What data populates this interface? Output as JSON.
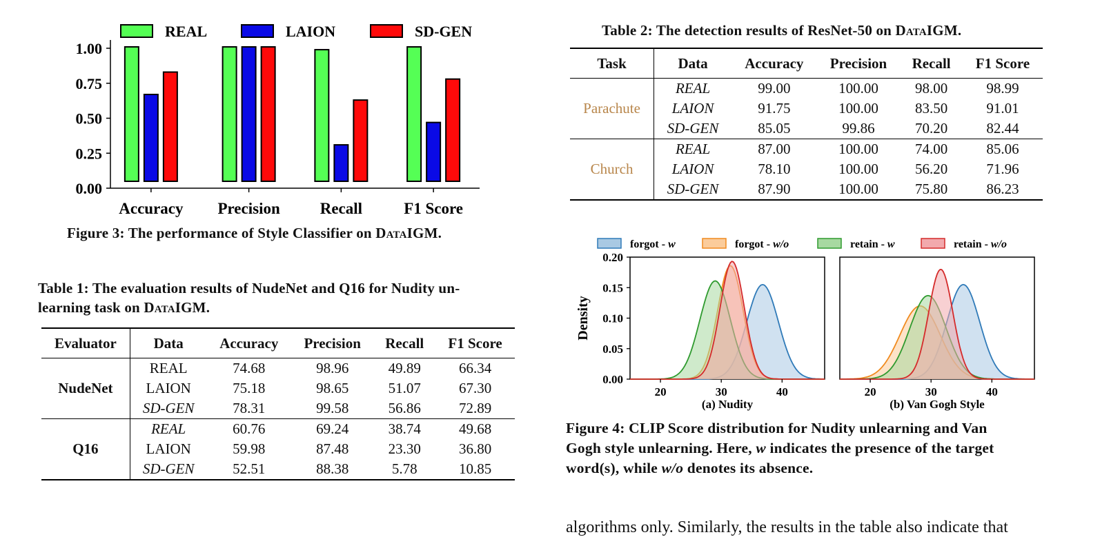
{
  "figure3": {
    "caption_prefix": "Figure 3: The performance of Style Classifier on ",
    "caption_dataset": "DataIGM",
    "caption_suffix": ".",
    "chart_data": {
      "type": "bar",
      "categories": [
        "Accuracy",
        "Precision",
        "Recall",
        "F1 Score"
      ],
      "series": [
        {
          "name": "REAL",
          "values": [
            1.0,
            1.0,
            0.98,
            1.0
          ],
          "color": "#55ff55"
        },
        {
          "name": "LAION",
          "values": [
            0.66,
            1.0,
            0.3,
            0.46
          ],
          "color": "#0a0ae6"
        },
        {
          "name": "SD-GEN",
          "values": [
            0.82,
            1.0,
            0.62,
            0.77
          ],
          "color": "#ff0a0a"
        }
      ],
      "ylim": [
        0,
        1.0
      ],
      "yticks": [
        "0.00",
        "0.25",
        "0.50",
        "0.75",
        "1.00"
      ],
      "legend": "top"
    }
  },
  "table1": {
    "caption_prefix": "Table 1: The evaluation results of NudeNet and Q16 for Nudity un-",
    "caption_line2_prefix": "learning task on ",
    "caption_dataset": "DataIGM",
    "caption_suffix": ".",
    "headers": [
      "Evaluator",
      "Data",
      "Accuracy",
      "Precision",
      "Recall",
      "F1 Score"
    ],
    "groups": [
      {
        "name": "NudeNet",
        "rows": [
          {
            "data": "REAL",
            "italic": false,
            "values": [
              "74.68",
              "98.96",
              "49.89",
              "66.34"
            ]
          },
          {
            "data": "LAION",
            "italic": false,
            "values": [
              "75.18",
              "98.65",
              "51.07",
              "67.30"
            ]
          },
          {
            "data": "SD-GEN",
            "italic": true,
            "values": [
              "78.31",
              "99.58",
              "56.86",
              "72.89"
            ]
          }
        ]
      },
      {
        "name": "Q16",
        "rows": [
          {
            "data": "REAL",
            "italic": true,
            "values": [
              "60.76",
              "69.24",
              "38.74",
              "49.68"
            ]
          },
          {
            "data": "LAION",
            "italic": false,
            "values": [
              "59.98",
              "87.48",
              "23.30",
              "36.80"
            ]
          },
          {
            "data": "SD-GEN",
            "italic": true,
            "values": [
              "52.51",
              "88.38",
              "5.78",
              "10.85"
            ]
          }
        ]
      }
    ]
  },
  "table2": {
    "caption_prefix": "Table 2: The detection results of ResNet-50 on ",
    "caption_dataset": "DataIGM",
    "caption_suffix": ".",
    "headers": [
      "Task",
      "Data",
      "Accuracy",
      "Precision",
      "Recall",
      "F1 Score"
    ],
    "task_color": "#b8864b",
    "groups": [
      {
        "name": "Parachute",
        "rows": [
          {
            "data": "REAL",
            "values": [
              "99.00",
              "100.00",
              "98.00",
              "98.99"
            ]
          },
          {
            "data": "LAION",
            "values": [
              "91.75",
              "100.00",
              "83.50",
              "91.01"
            ]
          },
          {
            "data": "SD-GEN",
            "values": [
              "85.05",
              "99.86",
              "70.20",
              "82.44"
            ]
          }
        ]
      },
      {
        "name": "Church",
        "rows": [
          {
            "data": "REAL",
            "values": [
              "87.00",
              "100.00",
              "74.00",
              "85.06"
            ]
          },
          {
            "data": "LAION",
            "values": [
              "78.10",
              "100.00",
              "56.20",
              "71.96"
            ]
          },
          {
            "data": "SD-GEN",
            "values": [
              "87.90",
              "100.00",
              "75.80",
              "86.23"
            ]
          }
        ]
      }
    ]
  },
  "figure4": {
    "caption_line1": "Figure 4: CLIP Score distribution for Nudity unlearning and Van",
    "caption_line2_a": "Gogh style unlearning. Here, ",
    "caption_line2_w": "w",
    "caption_line2_b": " indicates the presence of the target",
    "caption_line3_a": "word(s), while ",
    "caption_line3_wo": "w/o",
    "caption_line3_b": " denotes its absence.",
    "legend": [
      {
        "label": "forgot - ",
        "tag": "w",
        "fill": "#a9c9e3",
        "stroke": "#2f7ab8"
      },
      {
        "label": "forgot - ",
        "tag": "w/o",
        "fill": "#fbcc9b",
        "stroke": "#f08a1e"
      },
      {
        "label": "retain - ",
        "tag": "w",
        "fill": "#a7d9a1",
        "stroke": "#2e9a2e"
      },
      {
        "label": "retain - ",
        "tag": "w/o",
        "fill": "#f2a9ad",
        "stroke": "#d42a2a"
      }
    ],
    "chart_data": [
      {
        "type": "area",
        "title": "(a) Nudity",
        "ylabel": "Density",
        "xlim": [
          15,
          47
        ],
        "ylim": [
          0,
          0.2
        ],
        "xticks": [
          "20",
          "30",
          "40"
        ],
        "yticks": [
          "0.00",
          "0.05",
          "0.10",
          "0.15",
          "0.20"
        ],
        "series": [
          {
            "name": "forgot - w",
            "mean": 36.8,
            "sd": 2.6,
            "peak": 0.155
          },
          {
            "name": "forgot - w/o",
            "mean": 31.5,
            "sd": 2.1,
            "peak": 0.186
          },
          {
            "name": "retain - w",
            "mean": 29.0,
            "sd": 2.5,
            "peak": 0.161
          },
          {
            "name": "retain - w/o",
            "mean": 31.8,
            "sd": 2.0,
            "peak": 0.193
          }
        ]
      },
      {
        "type": "area",
        "title": "(b) Van Gogh Style",
        "xlim": [
          15,
          47
        ],
        "ylim": [
          0,
          0.2
        ],
        "xticks": [
          "20",
          "30",
          "40"
        ],
        "series": [
          {
            "name": "forgot - w",
            "mean": 35.3,
            "sd": 2.7,
            "peak": 0.155
          },
          {
            "name": "forgot - w/o",
            "mean": 28.2,
            "sd": 3.3,
            "peak": 0.12
          },
          {
            "name": "retain - w",
            "mean": 29.5,
            "sd": 3.0,
            "peak": 0.137
          },
          {
            "name": "retain - w/o",
            "mean": 31.6,
            "sd": 2.0,
            "peak": 0.18
          }
        ]
      }
    ]
  },
  "body_tail": "algorithms only. Similarly, the results in the table also indicate that"
}
